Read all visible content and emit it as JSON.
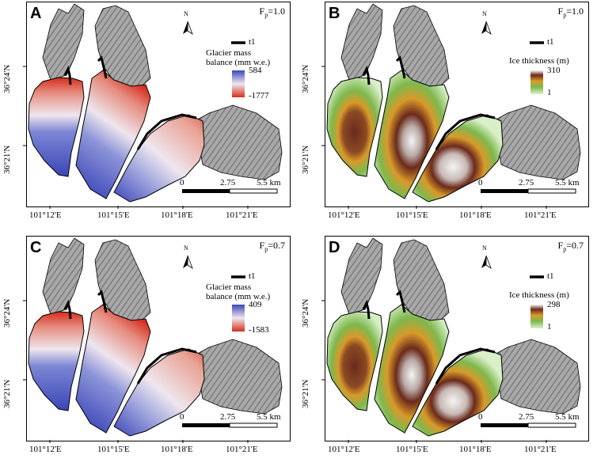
{
  "panels": [
    {
      "letter": "A",
      "fp": "=1.0",
      "legend_title_1": "Glacier mass",
      "legend_title_2": "balance (mm w.e.)",
      "legend_max": "584",
      "legend_min": "-1777",
      "kind": "mb"
    },
    {
      "letter": "B",
      "fp": "=1.0",
      "legend_title_1": "Ice thickness (m)",
      "legend_title_2": "",
      "legend_max": "310",
      "legend_min": "1",
      "kind": "it"
    },
    {
      "letter": "C",
      "fp": "=0.7",
      "legend_title_1": "Glacier mass",
      "legend_title_2": "balance (mm w.e.)",
      "legend_max": "409",
      "legend_min": "-1583",
      "kind": "mb"
    },
    {
      "letter": "D",
      "fp": "=0.7",
      "legend_title_1": "Ice thickness (m)",
      "legend_title_2": "",
      "legend_max": "298",
      "legend_min": "1",
      "kind": "it"
    }
  ],
  "common": {
    "fp_symbol": "F",
    "fp_sub": "p",
    "north": "N",
    "t1": "t1",
    "scale_0": "0",
    "scale_mid": "2.75",
    "scale_end": "5.5 km",
    "x_ticks": [
      "101°12'E",
      "101°15'E",
      "101°18'E",
      "101°21'E"
    ],
    "y_ticks": [
      "36°24'N",
      "36°21'N"
    ]
  },
  "colors": {
    "mb_high": "#3b46b8",
    "mb_mid": "#efe6ee",
    "mb_low": "#d62c1c",
    "it_dark": "#6b2a1c",
    "it_mid": "#d99a2a",
    "it_green": "#7db84d",
    "it_light": "#d9efc8",
    "it_white": "#f4f4f4",
    "terrain": "#9a9a9a"
  }
}
